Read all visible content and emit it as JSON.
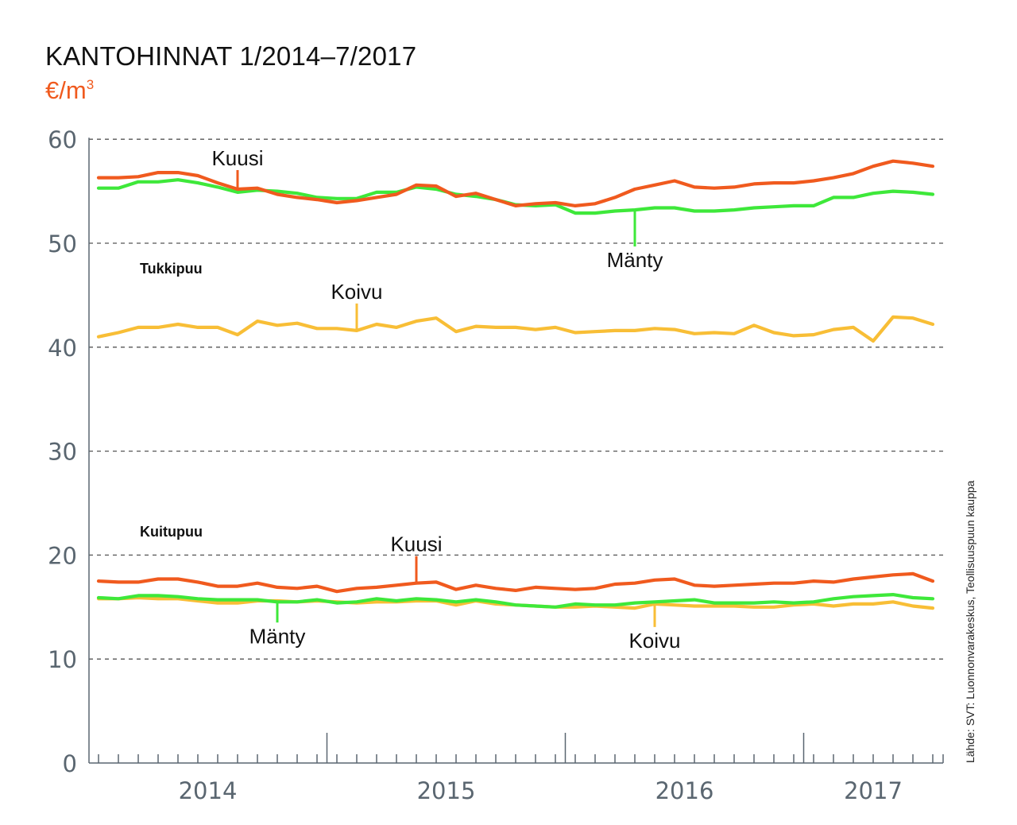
{
  "title": "KANTOHINNAT 1/2014–7/2017",
  "unit_prefix": "€/m",
  "unit_sup": "3",
  "source": "Lähde: SVT: Luonnonvarakeskus, Teollisuuspuun kauppa",
  "colors": {
    "kuusi": "#f05a1e",
    "manty": "#3ee83a",
    "koivu": "#f8be36",
    "grid": "#555555",
    "axis": "#5a6670"
  },
  "chart_data": {
    "type": "line",
    "title": "KANTOHINNAT 1/2014–7/2017",
    "ylabel": "€/m3",
    "ylim": [
      0,
      60
    ],
    "yticks": [
      0,
      10,
      20,
      30,
      40,
      50,
      60
    ],
    "grid": "horizontal dashed",
    "x_start": "2014-01",
    "x_end": "2017-07",
    "year_labels": [
      "2014",
      "2015",
      "2016",
      "2017"
    ],
    "groups": [
      {
        "label": "Tukkipuu",
        "series": [
          {
            "name": "Kuusi",
            "color": "#f05a1e",
            "values": [
              56.3,
              56.3,
              56.4,
              56.8,
              56.8,
              56.5,
              55.8,
              55.2,
              55.3,
              54.7,
              54.4,
              54.2,
              53.9,
              54.1,
              54.4,
              54.7,
              55.6,
              55.5,
              54.5,
              54.8,
              54.2,
              53.6,
              53.8,
              53.9,
              53.6,
              53.8,
              54.4,
              55.2,
              55.6,
              56.0,
              55.4,
              55.3,
              55.4,
              55.7,
              55.8,
              55.8,
              56.0,
              56.3,
              56.7,
              57.4,
              57.9,
              57.7,
              57.4
            ]
          },
          {
            "name": "Mänty",
            "color": "#3ee83a",
            "values": [
              55.3,
              55.3,
              55.9,
              55.9,
              56.1,
              55.8,
              55.4,
              54.9,
              55.1,
              55.0,
              54.8,
              54.4,
              54.3,
              54.3,
              54.9,
              54.9,
              55.4,
              55.2,
              54.7,
              54.5,
              54.2,
              53.7,
              53.6,
              53.7,
              52.9,
              52.9,
              53.1,
              53.2,
              53.4,
              53.4,
              53.1,
              53.1,
              53.2,
              53.4,
              53.5,
              53.6,
              53.6,
              54.4,
              54.4,
              54.8,
              55.0,
              54.9,
              54.7
            ]
          },
          {
            "name": "Koivu",
            "color": "#f8be36",
            "values": [
              41.0,
              41.4,
              41.9,
              41.9,
              42.2,
              41.9,
              41.9,
              41.2,
              42.5,
              42.1,
              42.3,
              41.8,
              41.8,
              41.6,
              42.2,
              41.9,
              42.5,
              42.8,
              41.5,
              42.0,
              41.9,
              41.9,
              41.7,
              41.9,
              41.4,
              41.5,
              41.6,
              41.6,
              41.8,
              41.7,
              41.3,
              41.4,
              41.3,
              42.1,
              41.4,
              41.1,
              41.2,
              41.7,
              41.9,
              40.6,
              42.9,
              42.8,
              42.2
            ]
          }
        ]
      },
      {
        "label": "Kuitupuu",
        "series": [
          {
            "name": "Kuusi",
            "color": "#f05a1e",
            "values": [
              17.5,
              17.4,
              17.4,
              17.7,
              17.7,
              17.4,
              17.0,
              17.0,
              17.3,
              16.9,
              16.8,
              17.0,
              16.5,
              16.8,
              16.9,
              17.1,
              17.3,
              17.4,
              16.7,
              17.1,
              16.8,
              16.6,
              16.9,
              16.8,
              16.7,
              16.8,
              17.2,
              17.3,
              17.6,
              17.7,
              17.1,
              17.0,
              17.1,
              17.2,
              17.3,
              17.3,
              17.5,
              17.4,
              17.7,
              17.9,
              18.1,
              18.2,
              17.5
            ]
          },
          {
            "name": "Mänty",
            "color": "#3ee83a",
            "values": [
              15.9,
              15.8,
              16.1,
              16.1,
              16.0,
              15.8,
              15.7,
              15.7,
              15.7,
              15.5,
              15.5,
              15.7,
              15.4,
              15.5,
              15.8,
              15.6,
              15.8,
              15.7,
              15.5,
              15.7,
              15.5,
              15.2,
              15.1,
              15.0,
              15.3,
              15.2,
              15.2,
              15.4,
              15.5,
              15.6,
              15.7,
              15.4,
              15.4,
              15.4,
              15.5,
              15.4,
              15.5,
              15.8,
              16.0,
              16.1,
              16.2,
              15.9,
              15.8
            ]
          },
          {
            "name": "Koivu",
            "color": "#f8be36",
            "values": [
              15.8,
              15.8,
              15.9,
              15.8,
              15.8,
              15.6,
              15.4,
              15.4,
              15.6,
              15.6,
              15.5,
              15.6,
              15.5,
              15.4,
              15.5,
              15.5,
              15.6,
              15.6,
              15.2,
              15.6,
              15.3,
              15.2,
              15.1,
              15.0,
              15.0,
              15.1,
              15.0,
              14.9,
              15.3,
              15.2,
              15.1,
              15.1,
              15.1,
              15.0,
              15.0,
              15.2,
              15.3,
              15.1,
              15.3,
              15.3,
              15.5,
              15.1,
              14.9
            ]
          }
        ]
      }
    ],
    "annotations": [
      {
        "text": "Kuusi",
        "series": "Tukkipuu Kuusi",
        "month_index": 7
      },
      {
        "text": "Mänty",
        "series": "Tukkipuu Mänty",
        "month_index": 27
      },
      {
        "text": "Koivu",
        "series": "Tukkipuu Koivu",
        "month_index": 13
      },
      {
        "text": "Kuusi",
        "series": "Kuitupuu Kuusi",
        "month_index": 16
      },
      {
        "text": "Mänty",
        "series": "Kuitupuu Mänty",
        "month_index": 9
      },
      {
        "text": "Koivu",
        "series": "Kuitupuu Koivu",
        "month_index": 28
      }
    ]
  }
}
